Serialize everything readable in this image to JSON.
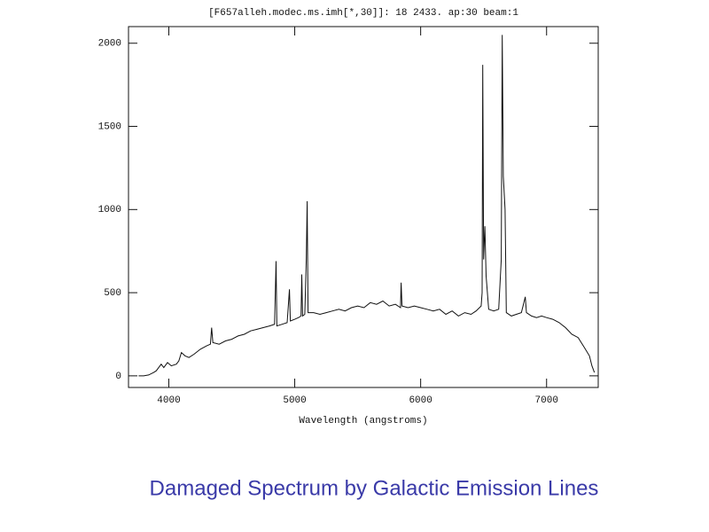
{
  "chart_data": {
    "type": "line",
    "title": "[F657alleh.modec.ms.imh[*,30]]: 18 2433. ap:30 beam:1",
    "x_label": "Wavelength (angstroms)",
    "caption": "Damaged Spectrum by Galactic Emission Lines",
    "xlim": [
      3680,
      7410
    ],
    "ylim": [
      -70,
      2100
    ],
    "xticks": [
      4000,
      5000,
      6000,
      7000
    ],
    "yticks": [
      0,
      500,
      1000,
      1500,
      2000
    ],
    "color": "#111111",
    "x": [
      3760,
      3800,
      3840,
      3880,
      3900,
      3940,
      3960,
      3990,
      4020,
      4060,
      4080,
      4100,
      4130,
      4160,
      4200,
      4250,
      4300,
      4330,
      4340,
      4350,
      4400,
      4450,
      4500,
      4550,
      4600,
      4650,
      4700,
      4750,
      4800,
      4840,
      4852,
      4858,
      4900,
      4940,
      4958,
      4965,
      5000,
      5030,
      5050,
      5056,
      5062,
      5080,
      5092,
      5099,
      5106,
      5150,
      5200,
      5250,
      5300,
      5350,
      5400,
      5450,
      5500,
      5550,
      5600,
      5650,
      5700,
      5750,
      5800,
      5840,
      5845,
      5852,
      5900,
      5950,
      6000,
      6050,
      6100,
      6150,
      6200,
      6250,
      6300,
      6350,
      6400,
      6440,
      6480,
      6488,
      6493,
      6500,
      6510,
      6520,
      6540,
      6580,
      6620,
      6640,
      6648,
      6656,
      6670,
      6680,
      6720,
      6760,
      6800,
      6831,
      6840,
      6880,
      6920,
      6960,
      7000,
      7050,
      7100,
      7150,
      7200,
      7250,
      7300,
      7340,
      7360,
      7380
    ],
    "values": [
      0,
      0,
      5,
      20,
      30,
      70,
      50,
      80,
      60,
      70,
      90,
      140,
      120,
      110,
      130,
      160,
      180,
      190,
      290,
      200,
      190,
      210,
      220,
      240,
      250,
      270,
      280,
      290,
      300,
      310,
      690,
      300,
      310,
      320,
      520,
      330,
      340,
      350,
      360,
      610,
      360,
      370,
      700,
      1050,
      380,
      380,
      370,
      380,
      390,
      400,
      390,
      410,
      420,
      410,
      440,
      430,
      450,
      420,
      430,
      410,
      560,
      420,
      410,
      420,
      410,
      400,
      390,
      400,
      370,
      390,
      360,
      380,
      370,
      390,
      420,
      500,
      1870,
      700,
      900,
      600,
      400,
      390,
      400,
      700,
      2050,
      1200,
      1000,
      380,
      360,
      370,
      380,
      475,
      380,
      360,
      350,
      360,
      350,
      340,
      320,
      290,
      250,
      230,
      170,
      120,
      60,
      20
    ]
  }
}
